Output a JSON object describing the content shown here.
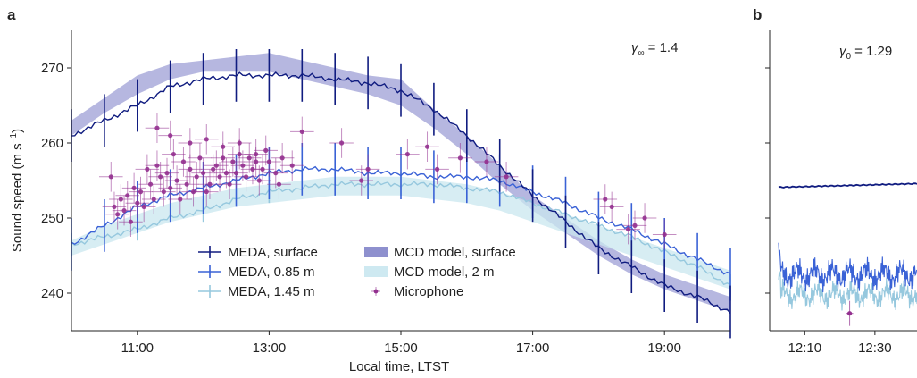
{
  "colors": {
    "surface": "#101c80",
    "m085": "#3a62d6",
    "m145": "#96c8de",
    "mcd_surface": "#7a7cc6",
    "mcd_2m": "#c9e7ef",
    "microphone": "#93308f",
    "axis": "#222222"
  },
  "panels": {
    "a": {
      "letter": "a",
      "annotation_symbol": "γ",
      "annotation_sub": "∞",
      "annotation_value": "= 1.4"
    },
    "b": {
      "letter": "b",
      "annotation_symbol": "γ",
      "annotation_sub": "0",
      "annotation_value": "= 1.29"
    }
  },
  "legend": {
    "meda_surface": "MEDA, surface",
    "meda_085": "MEDA, 0.85 m",
    "meda_145": "MEDA, 1.45 m",
    "mcd_surface": "MCD model, surface",
    "mcd_2m": "MCD model, 2 m",
    "microphone": "Microphone"
  },
  "chart_data": [
    {
      "panel": "a",
      "type": "line",
      "ylabel_main": "Sound speed (m s",
      "ylabel_sup": "−1",
      "ylabel_close": ")",
      "xlabel": "Local time, LTST",
      "xlim": [
        10.0,
        20.0
      ],
      "ylim": [
        235,
        275
      ],
      "xticks": [
        11,
        13,
        15,
        17,
        19
      ],
      "xtick_labels": [
        "11:00",
        "13:00",
        "15:00",
        "17:00",
        "19:00"
      ],
      "yticks": [
        240,
        250,
        260,
        270
      ],
      "ytick_labels": [
        "240",
        "250",
        "260",
        "270"
      ],
      "series": [
        {
          "name": "MCD model, surface",
          "kind": "band",
          "x": [
            10.0,
            10.5,
            11.0,
            11.5,
            12.0,
            12.5,
            13.0,
            13.5,
            14.0,
            14.5,
            15.0,
            15.5,
            16.0,
            16.5,
            17.0,
            17.5,
            18.0,
            18.5,
            19.0,
            19.5,
            20.0
          ],
          "lower": [
            261,
            264,
            266.5,
            268.5,
            269.5,
            269.5,
            269.5,
            268.5,
            267.5,
            266.5,
            265,
            262,
            258.5,
            254.5,
            251,
            248,
            245,
            242.5,
            240.5,
            239,
            237.5
          ],
          "upper": [
            263,
            266,
            269,
            270.5,
            271,
            271.5,
            272,
            271,
            270,
            269,
            268.5,
            264.5,
            261,
            257,
            253,
            250,
            247,
            244.5,
            242.5,
            241,
            239.5
          ]
        },
        {
          "name": "MCD model, 2 m",
          "kind": "band",
          "x": [
            10.0,
            10.5,
            11.0,
            11.5,
            12.0,
            12.5,
            13.0,
            13.5,
            14.0,
            14.5,
            15.0,
            15.5,
            16.0,
            16.5,
            17.0,
            17.5,
            18.0,
            18.5,
            19.0,
            19.5,
            20.0
          ],
          "lower": [
            245,
            246.5,
            248,
            249.5,
            250.5,
            251.5,
            252,
            252.5,
            253,
            253,
            253,
            252.5,
            252,
            251,
            249.5,
            248,
            246.5,
            245,
            243.5,
            242,
            240.5
          ],
          "upper": [
            247,
            249,
            250.5,
            252,
            253,
            254,
            254.5,
            255,
            255.5,
            255.5,
            255.5,
            255,
            254.5,
            253.5,
            252,
            250.5,
            249,
            247.5,
            246,
            244.5,
            243
          ]
        },
        {
          "name": "MEDA, 1.45 m",
          "kind": "line",
          "x": [
            10.0,
            10.5,
            11.0,
            11.5,
            12.0,
            12.5,
            13.0,
            13.5,
            14.0,
            14.5,
            15.0,
            15.5,
            16.0,
            16.5,
            17.0,
            17.5,
            18.0,
            18.5,
            19.0,
            19.5,
            20.0
          ],
          "y": [
            246.5,
            247.5,
            248.5,
            250,
            251,
            252.5,
            253.5,
            254,
            254.5,
            254.5,
            254.5,
            254.5,
            254,
            253.5,
            252,
            250.5,
            249,
            247.5,
            245.5,
            243.5,
            241
          ],
          "err_every": 2,
          "err": 1.5
        },
        {
          "name": "MEDA, 0.85 m",
          "kind": "line",
          "x": [
            10.0,
            10.5,
            11.0,
            11.5,
            12.0,
            12.5,
            13.0,
            13.5,
            14.0,
            14.5,
            15.0,
            15.5,
            16.0,
            16.5,
            17.0,
            17.5,
            18.0,
            18.5,
            19.0,
            19.5,
            20.0
          ],
          "y": [
            246.5,
            249,
            251.5,
            253,
            254,
            255,
            256,
            256.5,
            256.5,
            256,
            256,
            255.5,
            255.5,
            255,
            253.5,
            252,
            250,
            248.5,
            246.5,
            244.5,
            242.5
          ],
          "err_every": 1,
          "err": 3.5
        },
        {
          "name": "MEDA, surface",
          "kind": "line",
          "x": [
            10.0,
            10.5,
            11.0,
            11.5,
            12.0,
            12.5,
            13.0,
            13.5,
            14.0,
            14.5,
            15.0,
            15.5,
            16.0,
            16.5,
            17.0,
            17.5,
            18.0,
            18.5,
            19.0,
            19.5,
            20.0
          ],
          "y": [
            261,
            263,
            265,
            267.5,
            268.5,
            269,
            269,
            269,
            268.5,
            268,
            267,
            264.5,
            261,
            257,
            253,
            249.5,
            246,
            243.5,
            241,
            239.5,
            237.5
          ],
          "err_every": 1,
          "err": 3.5
        },
        {
          "name": "Microphone",
          "kind": "scatter",
          "points": [
            [
              10.6,
              255.5
            ],
            [
              10.65,
              251.5
            ],
            [
              10.7,
              250.5
            ],
            [
              10.75,
              252.5
            ],
            [
              10.8,
              251
            ],
            [
              10.85,
              253
            ],
            [
              10.9,
              249.5
            ],
            [
              10.95,
              254
            ],
            [
              11.0,
              252
            ],
            [
              11.05,
              253.5
            ],
            [
              11.1,
              251.5
            ],
            [
              11.15,
              256.5
            ],
            [
              11.2,
              254.5
            ],
            [
              11.25,
              252.5
            ],
            [
              11.3,
              257
            ],
            [
              11.35,
              255.5
            ],
            [
              11.4,
              253.5
            ],
            [
              11.45,
              256
            ],
            [
              11.5,
              254
            ],
            [
              11.55,
              258.5
            ],
            [
              11.6,
              255
            ],
            [
              11.65,
              252.5
            ],
            [
              11.7,
              257.5
            ],
            [
              11.75,
              254.5
            ],
            [
              11.8,
              256.5
            ],
            [
              11.85,
              253.5
            ],
            [
              11.9,
              255.5
            ],
            [
              11.95,
              258
            ],
            [
              12.0,
              256
            ],
            [
              12.05,
              253.5
            ],
            [
              12.1,
              254.5
            ],
            [
              12.15,
              256.5
            ],
            [
              12.2,
              257
            ],
            [
              12.25,
              255.5
            ],
            [
              12.3,
              258
            ],
            [
              12.35,
              256
            ],
            [
              12.4,
              254.5
            ],
            [
              12.45,
              257.5
            ],
            [
              12.5,
              256
            ],
            [
              12.55,
              258.5
            ],
            [
              12.6,
              257
            ],
            [
              12.65,
              255.5
            ],
            [
              12.7,
              258
            ],
            [
              12.75,
              256.5
            ],
            [
              12.8,
              257.5
            ],
            [
              12.85,
              255
            ],
            [
              12.9,
              256.5
            ],
            [
              13.0,
              257.5
            ],
            [
              13.1,
              256
            ],
            [
              13.2,
              258
            ],
            [
              13.35,
              257
            ],
            [
              11.3,
              262
            ],
            [
              11.5,
              261
            ],
            [
              11.8,
              260
            ],
            [
              12.05,
              260.5
            ],
            [
              12.3,
              259.5
            ],
            [
              12.55,
              260
            ],
            [
              12.8,
              258.5
            ],
            [
              13.5,
              261.5
            ],
            [
              14.1,
              260
            ],
            [
              14.5,
              256.5
            ],
            [
              15.4,
              259.5
            ],
            [
              15.9,
              258
            ],
            [
              16.3,
              257.5
            ],
            [
              16.6,
              255.5
            ],
            [
              18.1,
              252.5
            ],
            [
              18.2,
              251.5
            ],
            [
              18.45,
              248.5
            ],
            [
              18.55,
              249
            ],
            [
              18.7,
              250
            ],
            [
              19.0,
              247.8
            ],
            [
              14.4,
              255
            ],
            [
              15.1,
              258.5
            ],
            [
              15.55,
              256.5
            ],
            [
              12.95,
              259
            ],
            [
              13.15,
              254.5
            ]
          ],
          "xerr": 0.18,
          "yerr": 2.0
        }
      ]
    },
    {
      "panel": "b",
      "type": "line",
      "xlim": [
        12.0,
        12.7
      ],
      "ylim": [
        235,
        275
      ],
      "xticks": [
        12.1667,
        12.5
      ],
      "xtick_labels": [
        "12:10",
        "12:30"
      ],
      "series": [
        {
          "name": "MEDA, surface",
          "y_mean": 254.1
        },
        {
          "name": "MEDA, 0.85 m",
          "y_mean": 242.5
        },
        {
          "name": "MEDA, 1.45 m",
          "y_mean": 239.8
        },
        {
          "name": "Microphone",
          "points": [
            [
              12.38,
              237.3
            ]
          ]
        }
      ]
    }
  ]
}
